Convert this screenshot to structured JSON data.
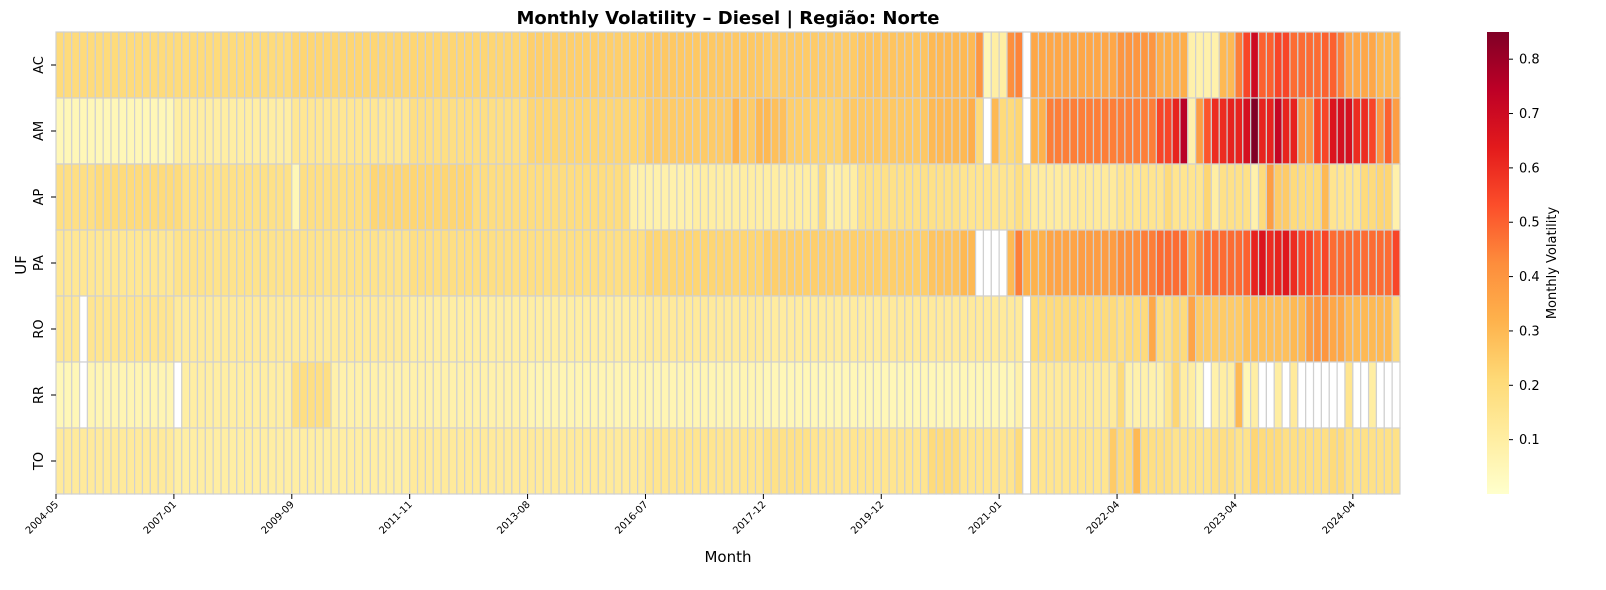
{
  "chart_data": {
    "type": "heatmap",
    "title": "Monthly Volatility – Diesel | Região: Norte",
    "xlabel": "Month",
    "ylabel": "UF",
    "rows": [
      "AC",
      "AM",
      "AP",
      "PA",
      "RO",
      "RR",
      "TO"
    ],
    "x_tick_labels": [
      "2004-05",
      "2007-01",
      "2009-09",
      "2011-11",
      "2013-08",
      "2016-07",
      "2017-12",
      "2019-12",
      "2021-01",
      "2022-04",
      "2023-04",
      "2024-04"
    ],
    "x_tick_columns": [
      0,
      15,
      30,
      45,
      60,
      75,
      90,
      105,
      120,
      135,
      150,
      165
    ],
    "n_columns": 171,
    "colorbar": {
      "label": "Monthly Volatility",
      "ticks": [
        0.1,
        0.2,
        0.3,
        0.4,
        0.5,
        0.6,
        0.7,
        0.8
      ],
      "vmin": 0.0,
      "vmax": 0.85,
      "colors": [
        "#ffffcc",
        "#ffeda0",
        "#fed976",
        "#feb24c",
        "#fd8d3c",
        "#fc4e2a",
        "#e31a1c",
        "#bd0026",
        "#800026"
      ]
    },
    "missing_color": "#ffffff",
    "grid_color": "#d0d0d0",
    "values": {
      "AC": [
        [
          0,
          29,
          0.2
        ],
        [
          30,
          59,
          0.22
        ],
        [
          60,
          74,
          0.24
        ],
        [
          75,
          89,
          0.26
        ],
        [
          90,
          101,
          0.25
        ],
        [
          102,
          110,
          0.27
        ],
        [
          111,
          116,
          0.3
        ],
        [
          117,
          117,
          0.4
        ],
        [
          118,
          118,
          0.05
        ],
        [
          119,
          120,
          0.1
        ],
        [
          121,
          121,
          0.42
        ],
        [
          122,
          122,
          0.44
        ],
        [
          123,
          123,
          null
        ],
        [
          124,
          134,
          0.35
        ],
        [
          135,
          139,
          0.4
        ],
        [
          140,
          143,
          0.33
        ],
        [
          144,
          147,
          0.08
        ],
        [
          148,
          149,
          0.3
        ],
        [
          150,
          150,
          0.45
        ],
        [
          151,
          151,
          0.55
        ],
        [
          152,
          152,
          0.7
        ],
        [
          153,
          154,
          0.5
        ],
        [
          155,
          156,
          0.55
        ],
        [
          157,
          160,
          0.48
        ],
        [
          161,
          162,
          0.5
        ],
        [
          163,
          163,
          0.45
        ],
        [
          164,
          167,
          0.35
        ],
        [
          168,
          170,
          0.3
        ]
      ],
      "AM": [
        [
          0,
          14,
          0.05
        ],
        [
          15,
          29,
          0.1
        ],
        [
          30,
          44,
          0.14
        ],
        [
          45,
          59,
          0.18
        ],
        [
          60,
          74,
          0.22
        ],
        [
          75,
          85,
          0.25
        ],
        [
          86,
          86,
          0.32
        ],
        [
          87,
          88,
          0.25
        ],
        [
          89,
          90,
          0.3
        ],
        [
          91,
          92,
          0.28
        ],
        [
          93,
          95,
          0.24
        ],
        [
          96,
          99,
          0.23
        ],
        [
          100,
          110,
          0.26
        ],
        [
          111,
          115,
          0.3
        ],
        [
          116,
          116,
          0.33
        ],
        [
          117,
          117,
          0.2
        ],
        [
          118,
          118,
          null
        ],
        [
          119,
          119,
          0.3
        ],
        [
          120,
          121,
          0.2
        ],
        [
          122,
          122,
          0.22
        ],
        [
          123,
          123,
          null
        ],
        [
          124,
          125,
          0.32
        ],
        [
          126,
          133,
          0.45
        ],
        [
          134,
          139,
          0.45
        ],
        [
          140,
          141,
          0.55
        ],
        [
          142,
          142,
          0.62
        ],
        [
          143,
          143,
          0.75
        ],
        [
          144,
          144,
          0.08
        ],
        [
          145,
          145,
          0.38
        ],
        [
          146,
          146,
          0.52
        ],
        [
          147,
          148,
          0.6
        ],
        [
          149,
          150,
          0.62
        ],
        [
          151,
          151,
          0.68
        ],
        [
          152,
          152,
          0.85
        ],
        [
          153,
          154,
          0.62
        ],
        [
          155,
          155,
          0.72
        ],
        [
          156,
          157,
          0.62
        ],
        [
          158,
          159,
          0.4
        ],
        [
          160,
          160,
          0.55
        ],
        [
          161,
          161,
          0.55
        ],
        [
          162,
          162,
          0.66
        ],
        [
          163,
          164,
          0.68
        ],
        [
          165,
          165,
          0.6
        ],
        [
          166,
          166,
          0.6
        ],
        [
          167,
          167,
          0.55
        ],
        [
          168,
          168,
          0.4
        ],
        [
          169,
          169,
          0.5
        ],
        [
          170,
          170,
          0.38
        ]
      ],
      "AP": [
        [
          0,
          4,
          0.18
        ],
        [
          5,
          15,
          0.2
        ],
        [
          16,
          29,
          0.17
        ],
        [
          30,
          30,
          0.05
        ],
        [
          31,
          39,
          0.18
        ],
        [
          40,
          52,
          0.22
        ],
        [
          53,
          72,
          0.19
        ],
        [
          73,
          80,
          0.08
        ],
        [
          81,
          96,
          0.1
        ],
        [
          97,
          97,
          0.2
        ],
        [
          98,
          98,
          0.08
        ],
        [
          99,
          101,
          0.1
        ],
        [
          102,
          114,
          0.17
        ],
        [
          115,
          121,
          0.15
        ],
        [
          122,
          122,
          0.18
        ],
        [
          123,
          123,
          0.15
        ],
        [
          124,
          128,
          0.11
        ],
        [
          129,
          134,
          0.12
        ],
        [
          135,
          140,
          0.15
        ],
        [
          141,
          141,
          0.2
        ],
        [
          142,
          145,
          0.15
        ],
        [
          146,
          146,
          0.22
        ],
        [
          147,
          147,
          0.1
        ],
        [
          148,
          151,
          0.17
        ],
        [
          152,
          152,
          0.08
        ],
        [
          153,
          153,
          0.2
        ],
        [
          154,
          154,
          0.38
        ],
        [
          155,
          156,
          0.25
        ],
        [
          157,
          160,
          0.2
        ],
        [
          161,
          161,
          0.3
        ],
        [
          162,
          165,
          0.15
        ],
        [
          166,
          167,
          0.2
        ],
        [
          168,
          169,
          0.22
        ],
        [
          170,
          170,
          0.08
        ]
      ],
      "PA": [
        [
          0,
          14,
          0.14
        ],
        [
          15,
          44,
          0.16
        ],
        [
          45,
          74,
          0.18
        ],
        [
          75,
          89,
          0.22
        ],
        [
          90,
          110,
          0.24
        ],
        [
          111,
          114,
          0.27
        ],
        [
          115,
          116,
          0.3
        ],
        [
          117,
          117,
          null
        ],
        [
          118,
          120,
          null
        ],
        [
          121,
          121,
          0.3
        ],
        [
          122,
          122,
          0.45
        ],
        [
          123,
          125,
          0.32
        ],
        [
          126,
          129,
          0.36
        ],
        [
          130,
          134,
          0.38
        ],
        [
          135,
          137,
          0.42
        ],
        [
          138,
          139,
          0.45
        ],
        [
          140,
          141,
          0.48
        ],
        [
          142,
          143,
          0.48
        ],
        [
          144,
          144,
          0.36
        ],
        [
          145,
          145,
          0.44
        ],
        [
          146,
          150,
          0.48
        ],
        [
          151,
          151,
          0.5
        ],
        [
          152,
          152,
          0.62
        ],
        [
          153,
          153,
          0.66
        ],
        [
          154,
          154,
          0.6
        ],
        [
          155,
          155,
          0.62
        ],
        [
          156,
          156,
          0.65
        ],
        [
          157,
          157,
          0.6
        ],
        [
          158,
          159,
          0.55
        ],
        [
          160,
          160,
          0.5
        ],
        [
          161,
          161,
          0.55
        ],
        [
          162,
          169,
          0.48
        ],
        [
          170,
          170,
          0.55
        ]
      ],
      "RO": [
        [
          0,
          2,
          0.14
        ],
        [
          3,
          3,
          null
        ],
        [
          4,
          14,
          0.15
        ],
        [
          15,
          44,
          0.12
        ],
        [
          45,
          74,
          0.1
        ],
        [
          75,
          89,
          0.12
        ],
        [
          90,
          104,
          0.11
        ],
        [
          105,
          121,
          0.12
        ],
        [
          122,
          122,
          0.12
        ],
        [
          123,
          123,
          null
        ],
        [
          124,
          134,
          0.2
        ],
        [
          135,
          135,
          0.18
        ],
        [
          136,
          138,
          0.2
        ],
        [
          139,
          139,
          0.35
        ],
        [
          140,
          141,
          0.18
        ],
        [
          142,
          142,
          0.22
        ],
        [
          143,
          143,
          0.2
        ],
        [
          144,
          144,
          0.36
        ],
        [
          145,
          150,
          0.25
        ],
        [
          151,
          156,
          0.28
        ],
        [
          157,
          158,
          0.3
        ],
        [
          159,
          159,
          0.38
        ],
        [
          160,
          161,
          0.4
        ],
        [
          162,
          163,
          0.35
        ],
        [
          164,
          169,
          0.3
        ],
        [
          170,
          170,
          0.2
        ]
      ],
      "RR": [
        [
          0,
          2,
          0.05
        ],
        [
          3,
          3,
          null
        ],
        [
          4,
          14,
          0.06
        ],
        [
          15,
          15,
          null
        ],
        [
          16,
          29,
          0.1
        ],
        [
          30,
          34,
          0.18
        ],
        [
          35,
          59,
          0.08
        ],
        [
          60,
          89,
          0.06
        ],
        [
          90,
          104,
          0.05
        ],
        [
          105,
          121,
          0.05
        ],
        [
          122,
          122,
          0.08
        ],
        [
          123,
          123,
          null
        ],
        [
          124,
          134,
          0.12
        ],
        [
          135,
          135,
          0.2
        ],
        [
          136,
          140,
          0.08
        ],
        [
          141,
          141,
          0.14
        ],
        [
          142,
          142,
          0.22
        ],
        [
          143,
          144,
          0.1
        ],
        [
          145,
          145,
          0.05
        ],
        [
          146,
          146,
          null
        ],
        [
          147,
          147,
          0.08
        ],
        [
          148,
          149,
          0.1
        ],
        [
          150,
          150,
          0.3
        ],
        [
          151,
          151,
          0.05
        ],
        [
          152,
          152,
          0.1
        ],
        [
          153,
          154,
          null
        ],
        [
          155,
          155,
          0.1
        ],
        [
          156,
          156,
          null
        ],
        [
          157,
          157,
          0.12
        ],
        [
          158,
          159,
          null
        ],
        [
          160,
          163,
          null
        ],
        [
          164,
          164,
          0.15
        ],
        [
          165,
          166,
          null
        ],
        [
          167,
          167,
          0.1
        ],
        [
          168,
          170,
          null
        ]
      ],
      "TO": [
        [
          0,
          14,
          0.12
        ],
        [
          15,
          44,
          0.1
        ],
        [
          45,
          74,
          0.12
        ],
        [
          75,
          89,
          0.15
        ],
        [
          90,
          95,
          0.17
        ],
        [
          96,
          104,
          0.15
        ],
        [
          105,
          110,
          0.15
        ],
        [
          111,
          114,
          0.2
        ],
        [
          115,
          121,
          0.15
        ],
        [
          122,
          122,
          0.2
        ],
        [
          123,
          123,
          null
        ],
        [
          124,
          133,
          0.15
        ],
        [
          134,
          134,
          0.25
        ],
        [
          135,
          136,
          0.2
        ],
        [
          137,
          137,
          0.3
        ],
        [
          138,
          141,
          0.18
        ],
        [
          142,
          146,
          0.16
        ],
        [
          147,
          149,
          0.18
        ],
        [
          150,
          151,
          0.16
        ],
        [
          152,
          152,
          0.22
        ],
        [
          153,
          155,
          0.2
        ],
        [
          156,
          161,
          0.18
        ],
        [
          162,
          163,
          0.2
        ],
        [
          164,
          170,
          0.17
        ]
      ]
    }
  }
}
